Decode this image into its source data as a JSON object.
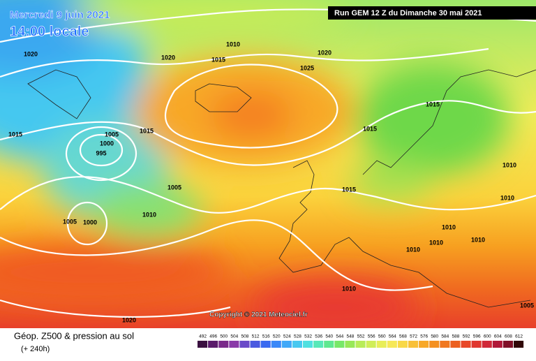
{
  "header": {
    "date": "Mercredi 9 juin 2021",
    "time": "14:00 locale",
    "run": "Run GEM 12 Z du Dimanche 30 mai 2021"
  },
  "copyright": "Copyright © 2021 Meteociel.fr",
  "footer": {
    "title": "Géop. Z500 & pression au sol",
    "lead": "(+ 240h)"
  },
  "colorbar": [
    492,
    496,
    500,
    504,
    508,
    512,
    516,
    520,
    524,
    528,
    532,
    536,
    540,
    544,
    548,
    552,
    556,
    560,
    564,
    568,
    572,
    576,
    580,
    584,
    588,
    592,
    596,
    600,
    604,
    608,
    612
  ],
  "isobar_labels": [
    "1020",
    "1020",
    "1015",
    "1010",
    "1020",
    "1025",
    "1015",
    "1005",
    "1000",
    "995",
    "1015",
    "1005",
    "1005",
    "1000",
    "1010",
    "1015",
    "1015",
    "1015",
    "1010",
    "1010",
    "1010",
    "1010",
    "1010",
    "1010",
    "1010",
    "1005",
    "1020"
  ]
}
